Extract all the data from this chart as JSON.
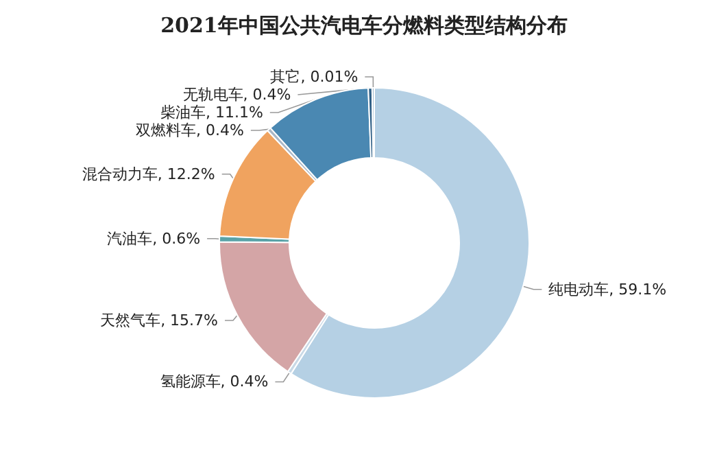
{
  "chart_data": {
    "type": "donut",
    "title": "2021年中国公共汽电车分燃料类型结构分布",
    "categories": [
      "纯电动车",
      "氢能源车",
      "天然气车",
      "汽油车",
      "混合动力车",
      "双燃料车",
      "柴油车",
      "无轨电车",
      "其它"
    ],
    "values": [
      59.1,
      0.4,
      15.7,
      0.6,
      12.2,
      0.4,
      11.1,
      0.4,
      0.01
    ],
    "colors": [
      "#b5d0e4",
      "#c9d9e6",
      "#d4a5a6",
      "#5aa3a8",
      "#f0a35f",
      "#a9b7c6",
      "#4a88b2",
      "#2f5f86",
      "#9fbad0"
    ],
    "value_labels": [
      ", 59.1%",
      ", 0.4%",
      ", 15.7%",
      ", 0.6%",
      ", 12.2%",
      ", 0.4%",
      ", 11.1%",
      ", 0.4%",
      ", 0.01%"
    ],
    "legend": false
  }
}
